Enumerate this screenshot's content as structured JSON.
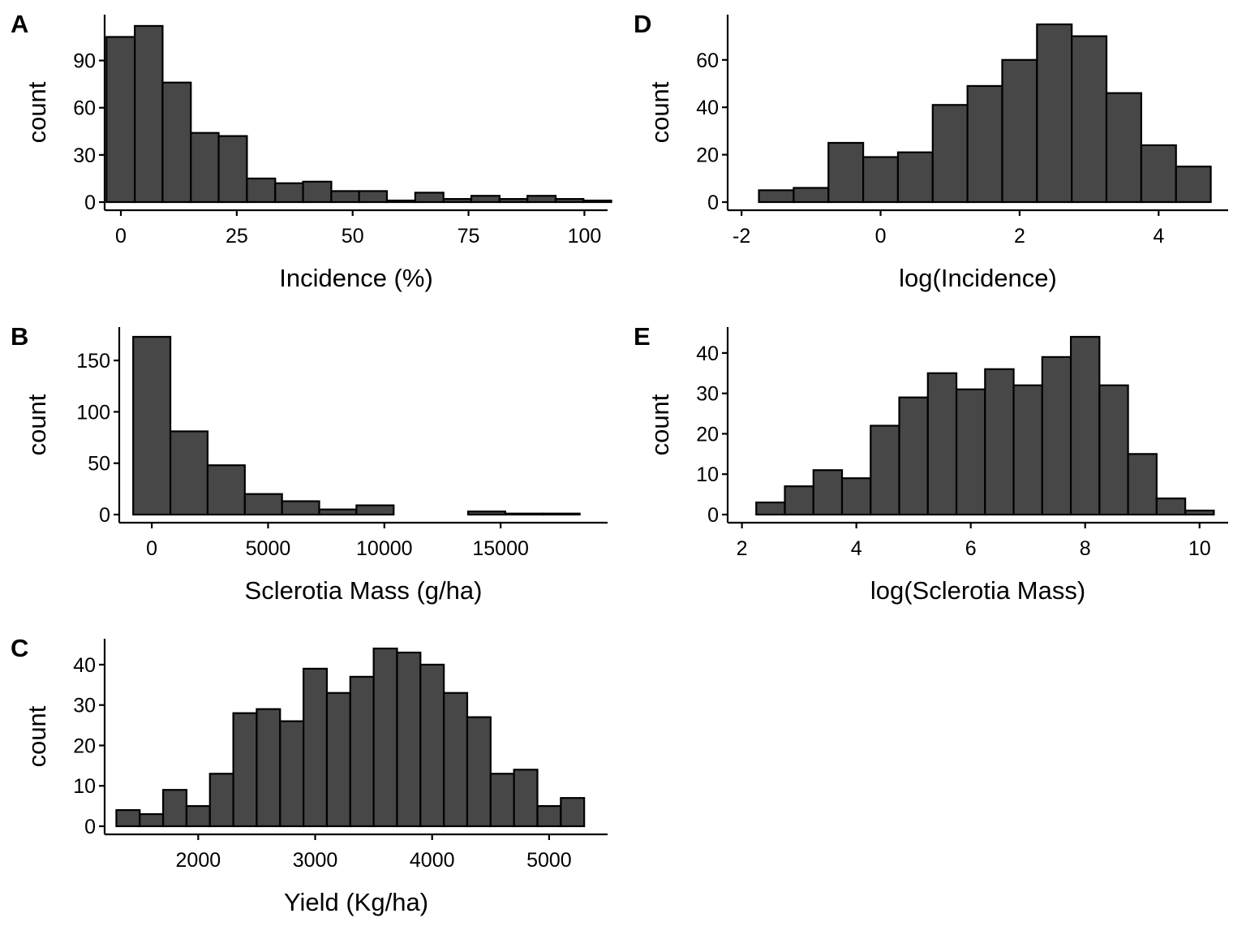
{
  "colors": {
    "bar_fill": "#474747",
    "bar_stroke": "#000000",
    "axis": "#000000",
    "background": "#ffffff"
  },
  "chart_data": [
    {
      "type": "bar",
      "panel": "A",
      "xlabel": "Incidence (%)",
      "ylabel": "count",
      "xlim": [
        -3.5,
        105
      ],
      "ylim": [
        0,
        113
      ],
      "xticks": [
        0,
        25,
        50,
        75,
        100
      ],
      "xtick_labels": [
        "0",
        "25",
        "50",
        "75",
        "100"
      ],
      "yticks": [
        0,
        30,
        60,
        90
      ],
      "ytick_labels": [
        "0",
        "30",
        "60",
        "90"
      ],
      "grid": false,
      "bin_edges": [
        -3.1,
        3,
        9,
        15.1,
        21.1,
        27.2,
        33.3,
        39.3,
        45.4,
        51.4,
        57.4,
        63.5,
        69.6,
        75.6,
        81.7,
        87.7,
        93.8,
        99.8,
        105.8
      ],
      "counts": [
        105,
        112,
        76,
        44,
        42,
        15,
        12,
        13,
        7,
        7,
        1,
        6,
        2,
        4,
        2,
        4,
        2,
        1
      ]
    },
    {
      "type": "bar",
      "panel": "B",
      "xlabel": "Sclerotia Mass (g/ha)",
      "ylabel": "count",
      "xlim": [
        -1400,
        19600
      ],
      "ylim": [
        0,
        173
      ],
      "xticks": [
        0,
        5000,
        10000,
        15000
      ],
      "xtick_labels": [
        "0",
        "5000",
        "10000",
        "15000"
      ],
      "yticks": [
        0,
        50,
        100,
        150
      ],
      "ytick_labels": [
        "0",
        "50",
        "100",
        "150"
      ],
      "grid": false,
      "bin_edges": [
        -800,
        800,
        2400,
        4000,
        5600,
        7200,
        8800,
        10400,
        12000,
        13600,
        15200,
        16800,
        18400
      ],
      "counts": [
        173,
        81,
        48,
        20,
        13,
        5,
        9,
        0,
        0,
        3,
        1,
        1
      ]
    },
    {
      "type": "bar",
      "panel": "C",
      "xlabel": "Yield (Kg/ha)",
      "ylabel": "count",
      "xlim": [
        1200,
        5500
      ],
      "ylim": [
        0,
        44
      ],
      "xticks": [
        2000,
        3000,
        4000,
        5000
      ],
      "xtick_labels": [
        "2000",
        "3000",
        "4000",
        "5000"
      ],
      "yticks": [
        0,
        10,
        20,
        30,
        40
      ],
      "ytick_labels": [
        "0",
        "10",
        "20",
        "30",
        "40"
      ],
      "grid": false,
      "bin_edges": [
        1300,
        1500,
        1700,
        1900,
        2100,
        2300,
        2500,
        2700,
        2900,
        3100,
        3300,
        3500,
        3700,
        3900,
        4100,
        4300,
        4500,
        4700,
        4900,
        5100,
        5300
      ],
      "counts": [
        4,
        3,
        9,
        5,
        13,
        28,
        29,
        26,
        39,
        33,
        37,
        44,
        43,
        40,
        33,
        27,
        13,
        14,
        5,
        7
      ]
    },
    {
      "type": "bar",
      "panel": "D",
      "xlabel": "log(Incidence)",
      "ylabel": "count",
      "xlim": [
        -2.2,
        5.0
      ],
      "ylim": [
        0,
        75
      ],
      "xticks": [
        -2,
        0,
        2,
        4
      ],
      "xtick_labels": [
        "-2",
        "0",
        "2",
        "4"
      ],
      "yticks": [
        0,
        20,
        40,
        60
      ],
      "ytick_labels": [
        "0",
        "20",
        "40",
        "60"
      ],
      "grid": false,
      "bin_edges": [
        -1.75,
        -1.25,
        -0.75,
        -0.25,
        0.25,
        0.75,
        1.25,
        1.75,
        2.25,
        2.75,
        3.25,
        3.75,
        4.25,
        4.75
      ],
      "counts": [
        5,
        6,
        25,
        19,
        21,
        41,
        49,
        60,
        75,
        70,
        46,
        24,
        15
      ]
    },
    {
      "type": "bar",
      "panel": "E",
      "xlabel": "log(Sclerotia Mass)",
      "ylabel": "count",
      "xlim": [
        1.75,
        10.5
      ],
      "ylim": [
        0,
        44
      ],
      "xticks": [
        2,
        4,
        6,
        8,
        10
      ],
      "xtick_labels": [
        "2",
        "4",
        "6",
        "8",
        "10"
      ],
      "yticks": [
        0,
        10,
        20,
        30,
        40
      ],
      "ytick_labels": [
        "0",
        "10",
        "20",
        "30",
        "40"
      ],
      "grid": false,
      "bin_edges": [
        2.25,
        2.75,
        3.25,
        3.75,
        4.25,
        4.75,
        5.25,
        5.75,
        6.25,
        6.75,
        7.25,
        7.75,
        8.25,
        8.75,
        9.25,
        9.75,
        10.25
      ],
      "counts": [
        3,
        7,
        11,
        9,
        22,
        29,
        35,
        31,
        36,
        32,
        39,
        44,
        32,
        15,
        4,
        1
      ]
    }
  ]
}
